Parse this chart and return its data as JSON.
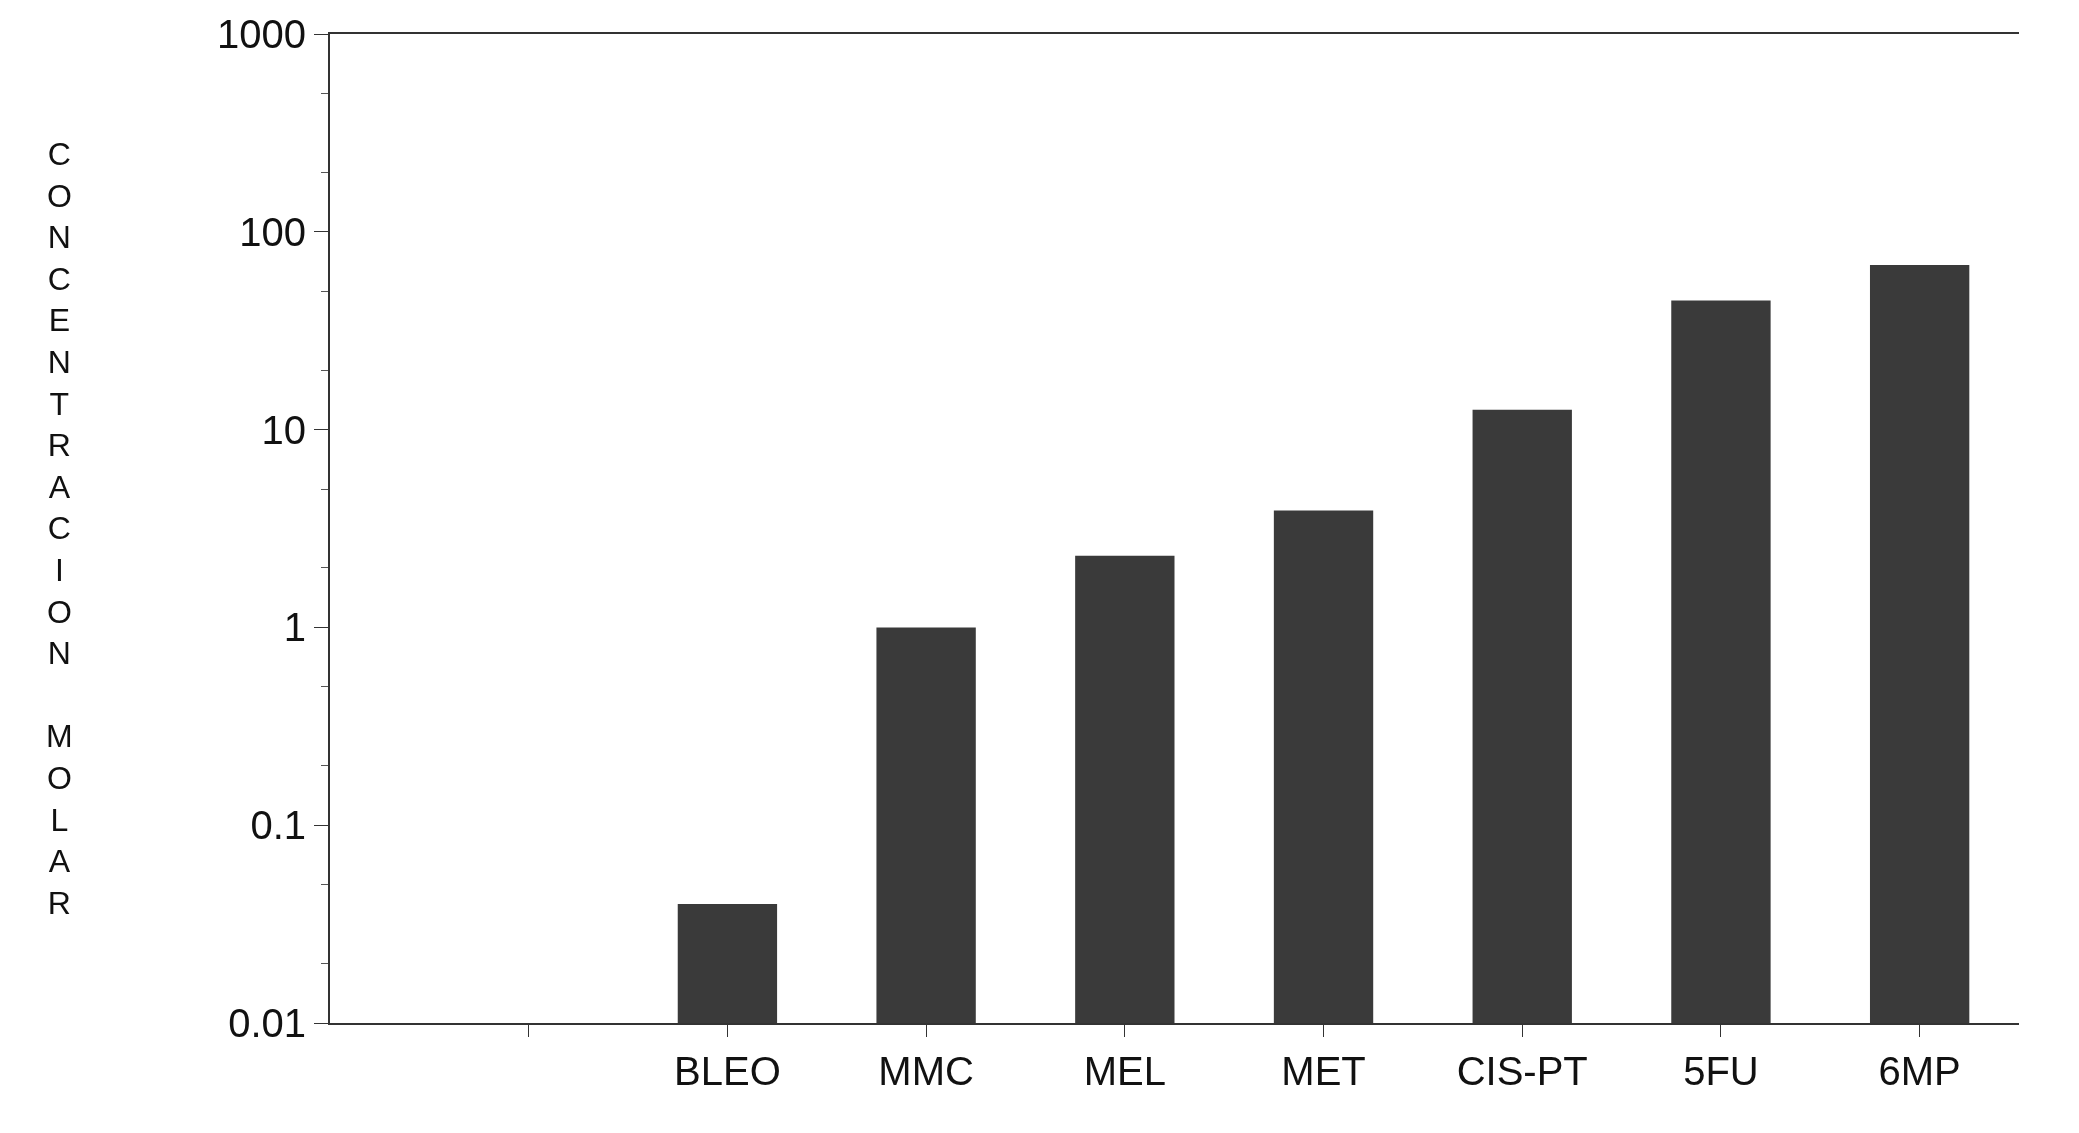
{
  "chart_data": {
    "type": "bar",
    "ylabel": "CONCENTRACION MOLAR",
    "categories": [
      null,
      "BLEO",
      "MMC",
      "MEL",
      "MET",
      "CIS-PT",
      "5FU",
      "6MP"
    ],
    "values": [
      null,
      0.04,
      1,
      2.3,
      3.9,
      12.6,
      45,
      68
    ],
    "color": "#3a3a3a",
    "log": true,
    "ylim": [
      0.01,
      1000
    ],
    "yticks": [
      0.01,
      0.1,
      1,
      10,
      100,
      1000
    ],
    "legend": false
  }
}
